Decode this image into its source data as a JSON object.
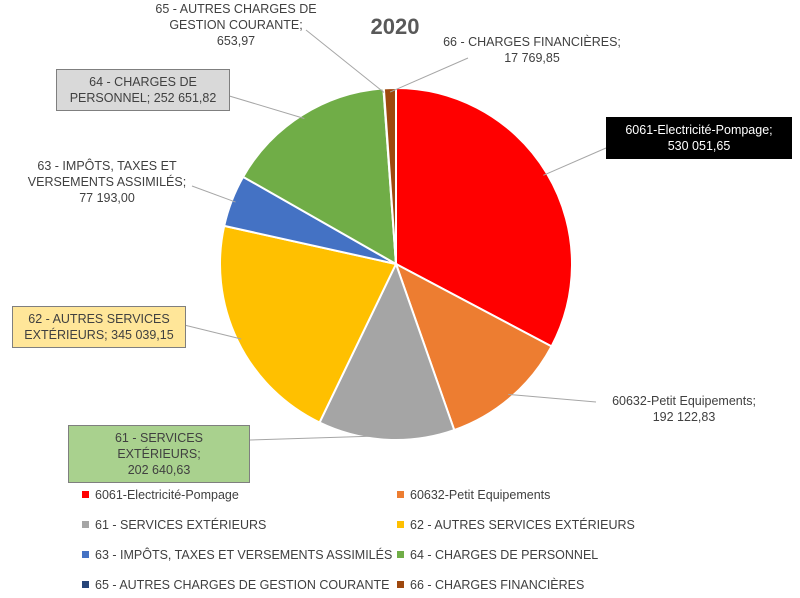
{
  "chart_data": {
    "type": "pie",
    "title": "2020",
    "slices": [
      {
        "name": "6061-Electricité-Pompage",
        "value": 530051.65,
        "color": "#ff0000",
        "label_lines": [
          "6061-Electricité-Pompage;",
          "530 051,65"
        ]
      },
      {
        "name": "60632-Petit Equipements",
        "value": 192122.83,
        "color": "#ed7d31",
        "label_lines": [
          "60632-Petit Equipements;",
          "192 122,83"
        ]
      },
      {
        "name": "61 - SERVICES EXTÉRIEURS",
        "value": 202640.63,
        "color": "#a5a5a5",
        "label_lines": [
          "61 - SERVICES EXTÉRIEURS;",
          "202 640,63"
        ]
      },
      {
        "name": "62 - AUTRES SERVICES EXTÉRIEURS",
        "value": 345039.15,
        "color": "#ffc000",
        "label_lines": [
          "62 - AUTRES SERVICES",
          "EXTÉRIEURS; 345 039,15"
        ]
      },
      {
        "name": "63 - IMPÔTS, TAXES ET VERSEMENTS ASSIMILÉS",
        "value": 77193.0,
        "color": "#4472c4",
        "label_lines": [
          "63 - IMPÔTS, TAXES ET",
          "VERSEMENTS ASSIMILÉS;",
          "77 193,00"
        ]
      },
      {
        "name": "64 - CHARGES DE PERSONNEL",
        "value": 252651.82,
        "color": "#70ad47",
        "label_lines": [
          "64 - CHARGES DE",
          "PERSONNEL; 252 651,82"
        ]
      },
      {
        "name": "65 - AUTRES CHARGES DE GESTION COURANTE",
        "value": 653.97,
        "color": "#264478",
        "label_lines": [
          "65 - AUTRES CHARGES DE",
          "GESTION COURANTE;",
          "653,97"
        ]
      },
      {
        "name": "66 - CHARGES FINANCIÈRES",
        "value": 17769.85,
        "color": "#9e480e",
        "label_lines": [
          "66 - CHARGES FINANCIÈRES;",
          "17 769,85"
        ]
      }
    ],
    "legend_position": "bottom"
  }
}
